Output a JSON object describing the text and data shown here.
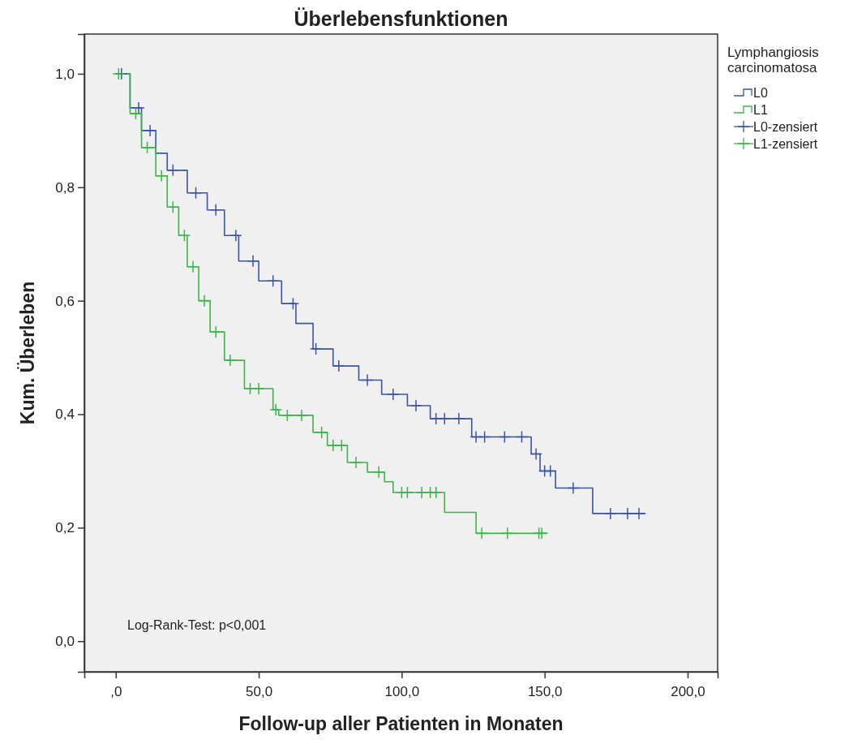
{
  "chart_data": {
    "type": "step",
    "title": "Überlebensfunktionen",
    "xlabel": "Follow-up aller Patienten in Monaten",
    "ylabel": "Kum. Überleben",
    "legend_title": "Lymphangiosis carcinomatosa",
    "legend": "top right",
    "annotations": [
      "Log-Rank-Test: p<0,001"
    ],
    "xlim": [
      -11,
      210.5
    ],
    "ylim": [
      -0.054,
      1.07
    ],
    "xticks": [
      {
        "value": 0,
        "label": ",0"
      },
      {
        "value": 50,
        "label": "50,0"
      },
      {
        "value": 100,
        "label": "100,0"
      },
      {
        "value": 150,
        "label": "150,0"
      },
      {
        "value": 200,
        "label": "200,0"
      }
    ],
    "yticks": [
      {
        "value": 0,
        "label": "0,0"
      },
      {
        "value": 0.2,
        "label": "0,2"
      },
      {
        "value": 0.4,
        "label": "0,4"
      },
      {
        "value": 0.6,
        "label": "0,6"
      },
      {
        "value": 0.8,
        "label": "0,8"
      },
      {
        "value": 1,
        "label": "1,0"
      }
    ],
    "series": [
      {
        "name": "L0",
        "color": "#3b55a8",
        "x": [
          0,
          5,
          9,
          14,
          18,
          25,
          32,
          38,
          43,
          50,
          58,
          63,
          69,
          76,
          85,
          93,
          102,
          110,
          124.5,
          145.3,
          148.4,
          153.8,
          166.8,
          185.3
        ],
        "values": [
          1,
          0.94,
          0.9,
          0.86,
          0.83,
          0.79,
          0.76,
          0.715,
          0.67,
          0.635,
          0.595,
          0.56,
          0.515,
          0.485,
          0.46,
          0.435,
          0.415,
          0.392,
          0.36,
          0.33,
          0.3,
          0.27,
          0.225,
          0.225
        ]
      },
      {
        "name": "L1",
        "color": "#3cb44a",
        "x": [
          0,
          5,
          9,
          14,
          18,
          22,
          25,
          29,
          33,
          38,
          45,
          55,
          57,
          69,
          74,
          81,
          88,
          94,
          97,
          115,
          126,
          151
        ],
        "values": [
          1,
          0.93,
          0.87,
          0.82,
          0.765,
          0.715,
          0.66,
          0.6,
          0.545,
          0.495,
          0.445,
          0.408,
          0.398,
          0.368,
          0.345,
          0.315,
          0.298,
          0.281,
          0.262,
          0.227,
          0.19,
          0.19
        ]
      },
      {
        "name": "L0-zensiert",
        "type": "scatter",
        "marker": "cross",
        "color": "#3b55a8",
        "x": [
          2,
          8,
          12,
          20,
          28,
          35,
          42,
          48,
          55,
          62,
          70,
          78,
          88,
          97,
          105,
          112,
          115,
          120,
          126,
          129,
          136,
          142,
          147,
          150,
          152,
          160,
          173,
          179,
          183
        ],
        "values": [
          1,
          0.94,
          0.9,
          0.83,
          0.79,
          0.76,
          0.715,
          0.67,
          0.635,
          0.595,
          0.515,
          0.485,
          0.46,
          0.435,
          0.415,
          0.392,
          0.392,
          0.392,
          0.36,
          0.36,
          0.36,
          0.36,
          0.33,
          0.3,
          0.3,
          0.27,
          0.225,
          0.225,
          0.225
        ]
      },
      {
        "name": "L1-zensiert",
        "type": "scatter",
        "marker": "cross",
        "color": "#3cb44a",
        "x": [
          1,
          7,
          11,
          16,
          20,
          24,
          27,
          31,
          35,
          40,
          47,
          50,
          56,
          60,
          65,
          72,
          76,
          79,
          84,
          92,
          100,
          102,
          107,
          110,
          112,
          128,
          137,
          148,
          149
        ],
        "values": [
          1,
          0.93,
          0.87,
          0.82,
          0.765,
          0.715,
          0.66,
          0.6,
          0.545,
          0.495,
          0.445,
          0.445,
          0.408,
          0.398,
          0.398,
          0.368,
          0.345,
          0.345,
          0.315,
          0.298,
          0.262,
          0.262,
          0.262,
          0.262,
          0.262,
          0.19,
          0.19,
          0.19,
          0.19
        ]
      }
    ]
  }
}
